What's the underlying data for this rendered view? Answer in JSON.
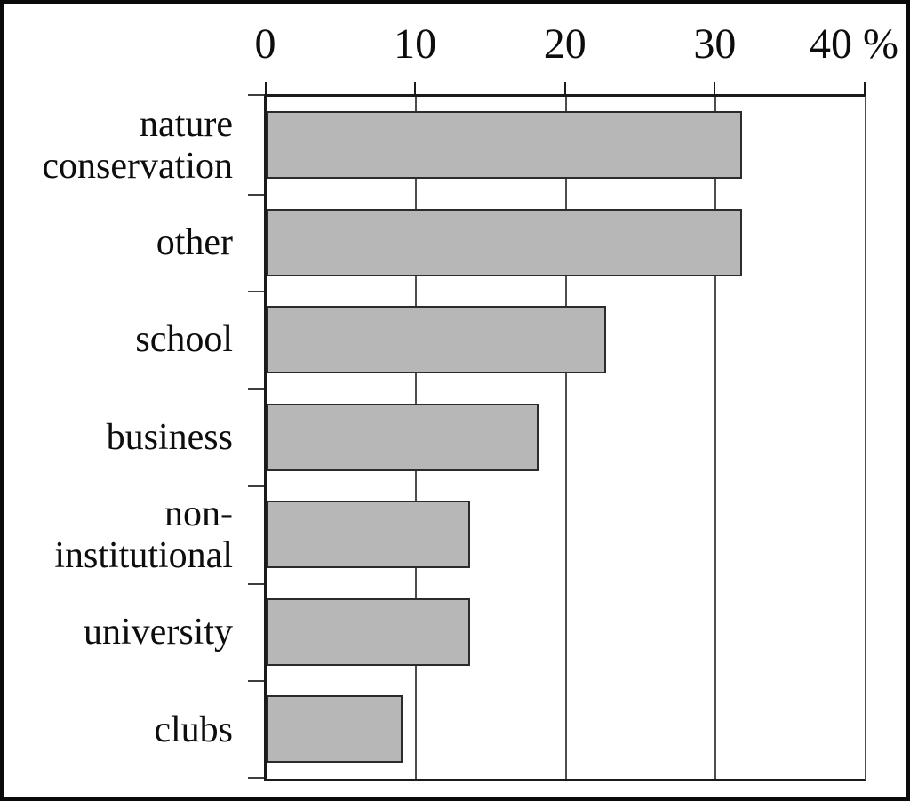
{
  "chart_data": {
    "type": "bar",
    "orientation": "horizontal",
    "title": "",
    "xlabel": "%",
    "ylabel": "",
    "categories": [
      "nature conservation",
      "other",
      "school",
      "business",
      "non-institutional",
      "university",
      "clubs"
    ],
    "category_lines": [
      [
        "nature",
        "conservation"
      ],
      [
        "other"
      ],
      [
        "school"
      ],
      [
        "business"
      ],
      [
        "non-",
        "institutional"
      ],
      [
        "university"
      ],
      [
        "clubs"
      ]
    ],
    "values": [
      31.8,
      31.8,
      22.7,
      18.2,
      13.6,
      13.6,
      9.1
    ],
    "unit": "%",
    "xlim": [
      0,
      40
    ],
    "x_ticks": [
      0,
      10,
      20,
      30,
      40
    ],
    "x_tick_labels": [
      "0",
      "10",
      "20",
      "30",
      "40 %"
    ],
    "grid": true,
    "gridline_ticks": [
      10,
      20,
      30
    ],
    "legend": false,
    "colors": {
      "bar_fill": "#b7b7b7",
      "bar_border": "#2b2b2b",
      "axis": "#1a1a1a",
      "gridline": "#4d4d4d",
      "text": "#0d0d0d",
      "background": "#ffffff",
      "figure_border": "#0a0a0a"
    }
  }
}
